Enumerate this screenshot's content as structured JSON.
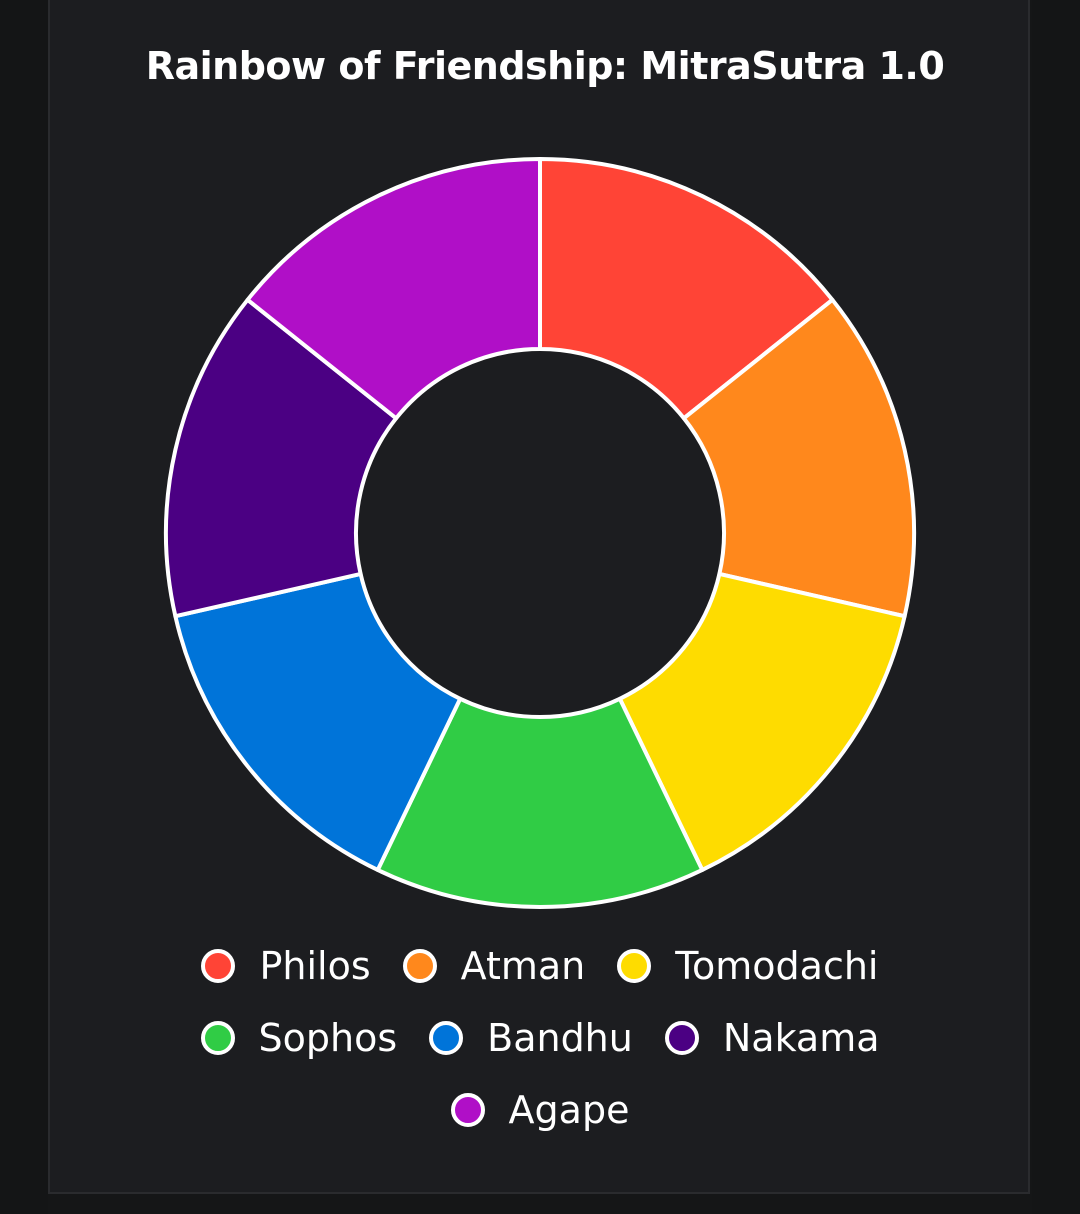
{
  "chart_data": {
    "type": "pie",
    "donut": true,
    "title": "Rainbow of Friendship: MitraSutra 1.0",
    "categories": [
      "Philos",
      "Atman",
      "Tomodachi",
      "Sophos",
      "Bandhu",
      "Nakama",
      "Agape"
    ],
    "values": [
      1,
      1,
      1,
      1,
      1,
      1,
      1
    ],
    "colors": [
      "#FF4436",
      "#FF881C",
      "#FEDC00",
      "#30CC45",
      "#0074D9",
      "#4B0083",
      "#B00FC7"
    ],
    "legend_position": "bottom"
  },
  "style": {
    "background": "#1c1d20",
    "slice_border": "#ffffff"
  }
}
